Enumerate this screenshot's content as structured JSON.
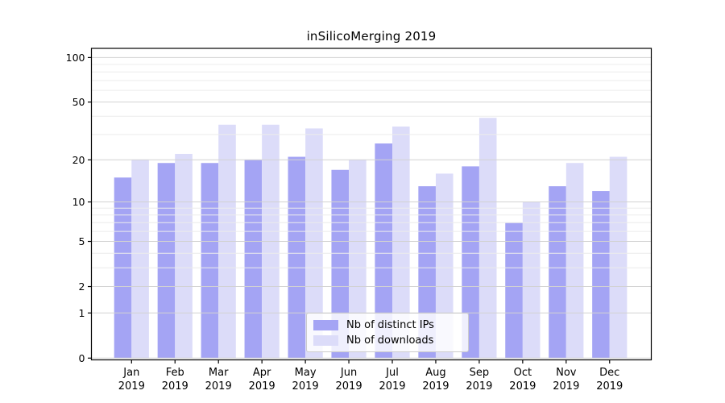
{
  "chart_data": {
    "type": "bar",
    "title": "inSilicoMerging 2019",
    "categories": [
      "Jan 2019",
      "Feb 2019",
      "Mar 2019",
      "Apr 2019",
      "May 2019",
      "Jun 2019",
      "Jul 2019",
      "Aug 2019",
      "Sep 2019",
      "Oct 2019",
      "Nov 2019",
      "Dec 2019"
    ],
    "x_tick_months": [
      "Jan",
      "Feb",
      "Mar",
      "Apr",
      "May",
      "Jun",
      "Jul",
      "Aug",
      "Sep",
      "Oct",
      "Nov",
      "Dec"
    ],
    "x_tick_year": "2019",
    "series": [
      {
        "name": "Nb of distinct IPs",
        "color": "#a4a4f4",
        "values": [
          15,
          19,
          19,
          20,
          21,
          17,
          26,
          13,
          18,
          7,
          13,
          12
        ]
      },
      {
        "name": "Nb of downloads",
        "color": "#dcdcf9",
        "values": [
          20,
          22,
          35,
          35,
          33,
          20,
          34,
          16,
          39,
          10,
          19,
          21
        ]
      }
    ],
    "y_axis": {
      "scale": "symlog",
      "major_ticks": [
        0,
        1,
        2,
        5,
        10,
        20,
        50,
        100
      ],
      "minor_ticks": [
        3,
        4,
        6,
        7,
        8,
        9,
        30,
        40,
        60,
        70,
        80,
        90
      ],
      "range_top": 115
    },
    "legend": {
      "position": "lower center"
    },
    "grid": "on",
    "xlabel": "",
    "ylabel": ""
  }
}
